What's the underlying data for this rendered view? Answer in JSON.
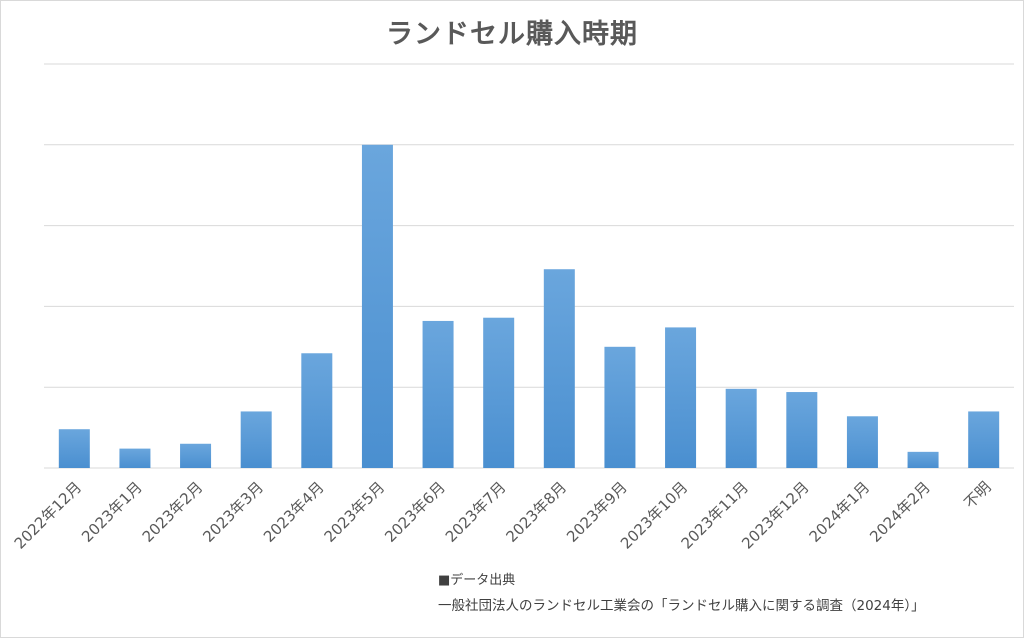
{
  "chart_data": {
    "type": "bar",
    "title": "ランドセル購入時期",
    "categories": [
      "2022年12月",
      "2023年1月",
      "2023年2月",
      "2023年3月",
      "2023年4月",
      "2023年5月",
      "2023年6月",
      "2023年7月",
      "2023年8月",
      "2023年9月",
      "2023年10月",
      "2023年11月",
      "2023年12月",
      "2024年1月",
      "2024年2月",
      "不明"
    ],
    "values": [
      2.4,
      1.2,
      1.5,
      3.5,
      7.1,
      20.0,
      9.1,
      9.3,
      12.3,
      7.5,
      8.7,
      4.9,
      4.7,
      3.2,
      1.0,
      3.5
    ],
    "ylim": [
      0,
      25
    ],
    "grid": true,
    "ytick_labels_shown": false,
    "bar_color": "#5b9bd5",
    "xlabel": "",
    "ylabel": ""
  },
  "source": {
    "heading": "■データ出典",
    "text": "一般社団法人のランドセル工業会の「ランドセル購入に関する調査（2024年）」"
  }
}
